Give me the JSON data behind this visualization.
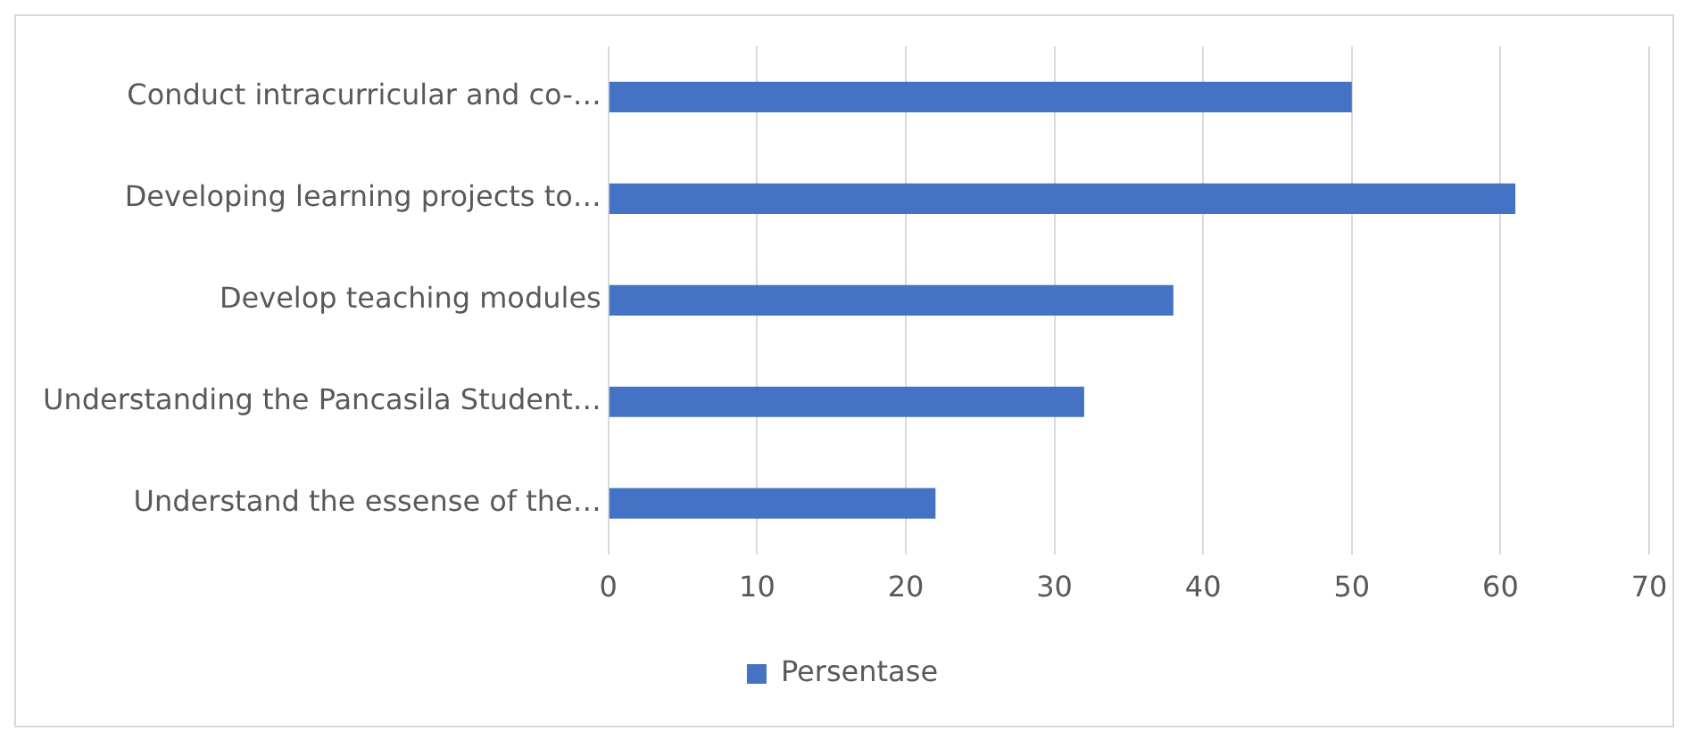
{
  "chart_data": {
    "type": "bar",
    "orientation": "horizontal",
    "categories": [
      "Conduct intracurricular and co-…",
      "Developing learning projects to…",
      "Develop teaching modules",
      "Understanding the Pancasila Student…",
      "Understand the essense of the…"
    ],
    "series": [
      {
        "name": "Persentase",
        "color": "#4472c4",
        "values": [
          50,
          61,
          38,
          32,
          22
        ]
      }
    ],
    "xlim": [
      0,
      70
    ],
    "xticks": [
      0,
      10,
      20,
      30,
      40,
      50,
      60,
      70
    ],
    "grid": "x",
    "legend": "bottom"
  }
}
